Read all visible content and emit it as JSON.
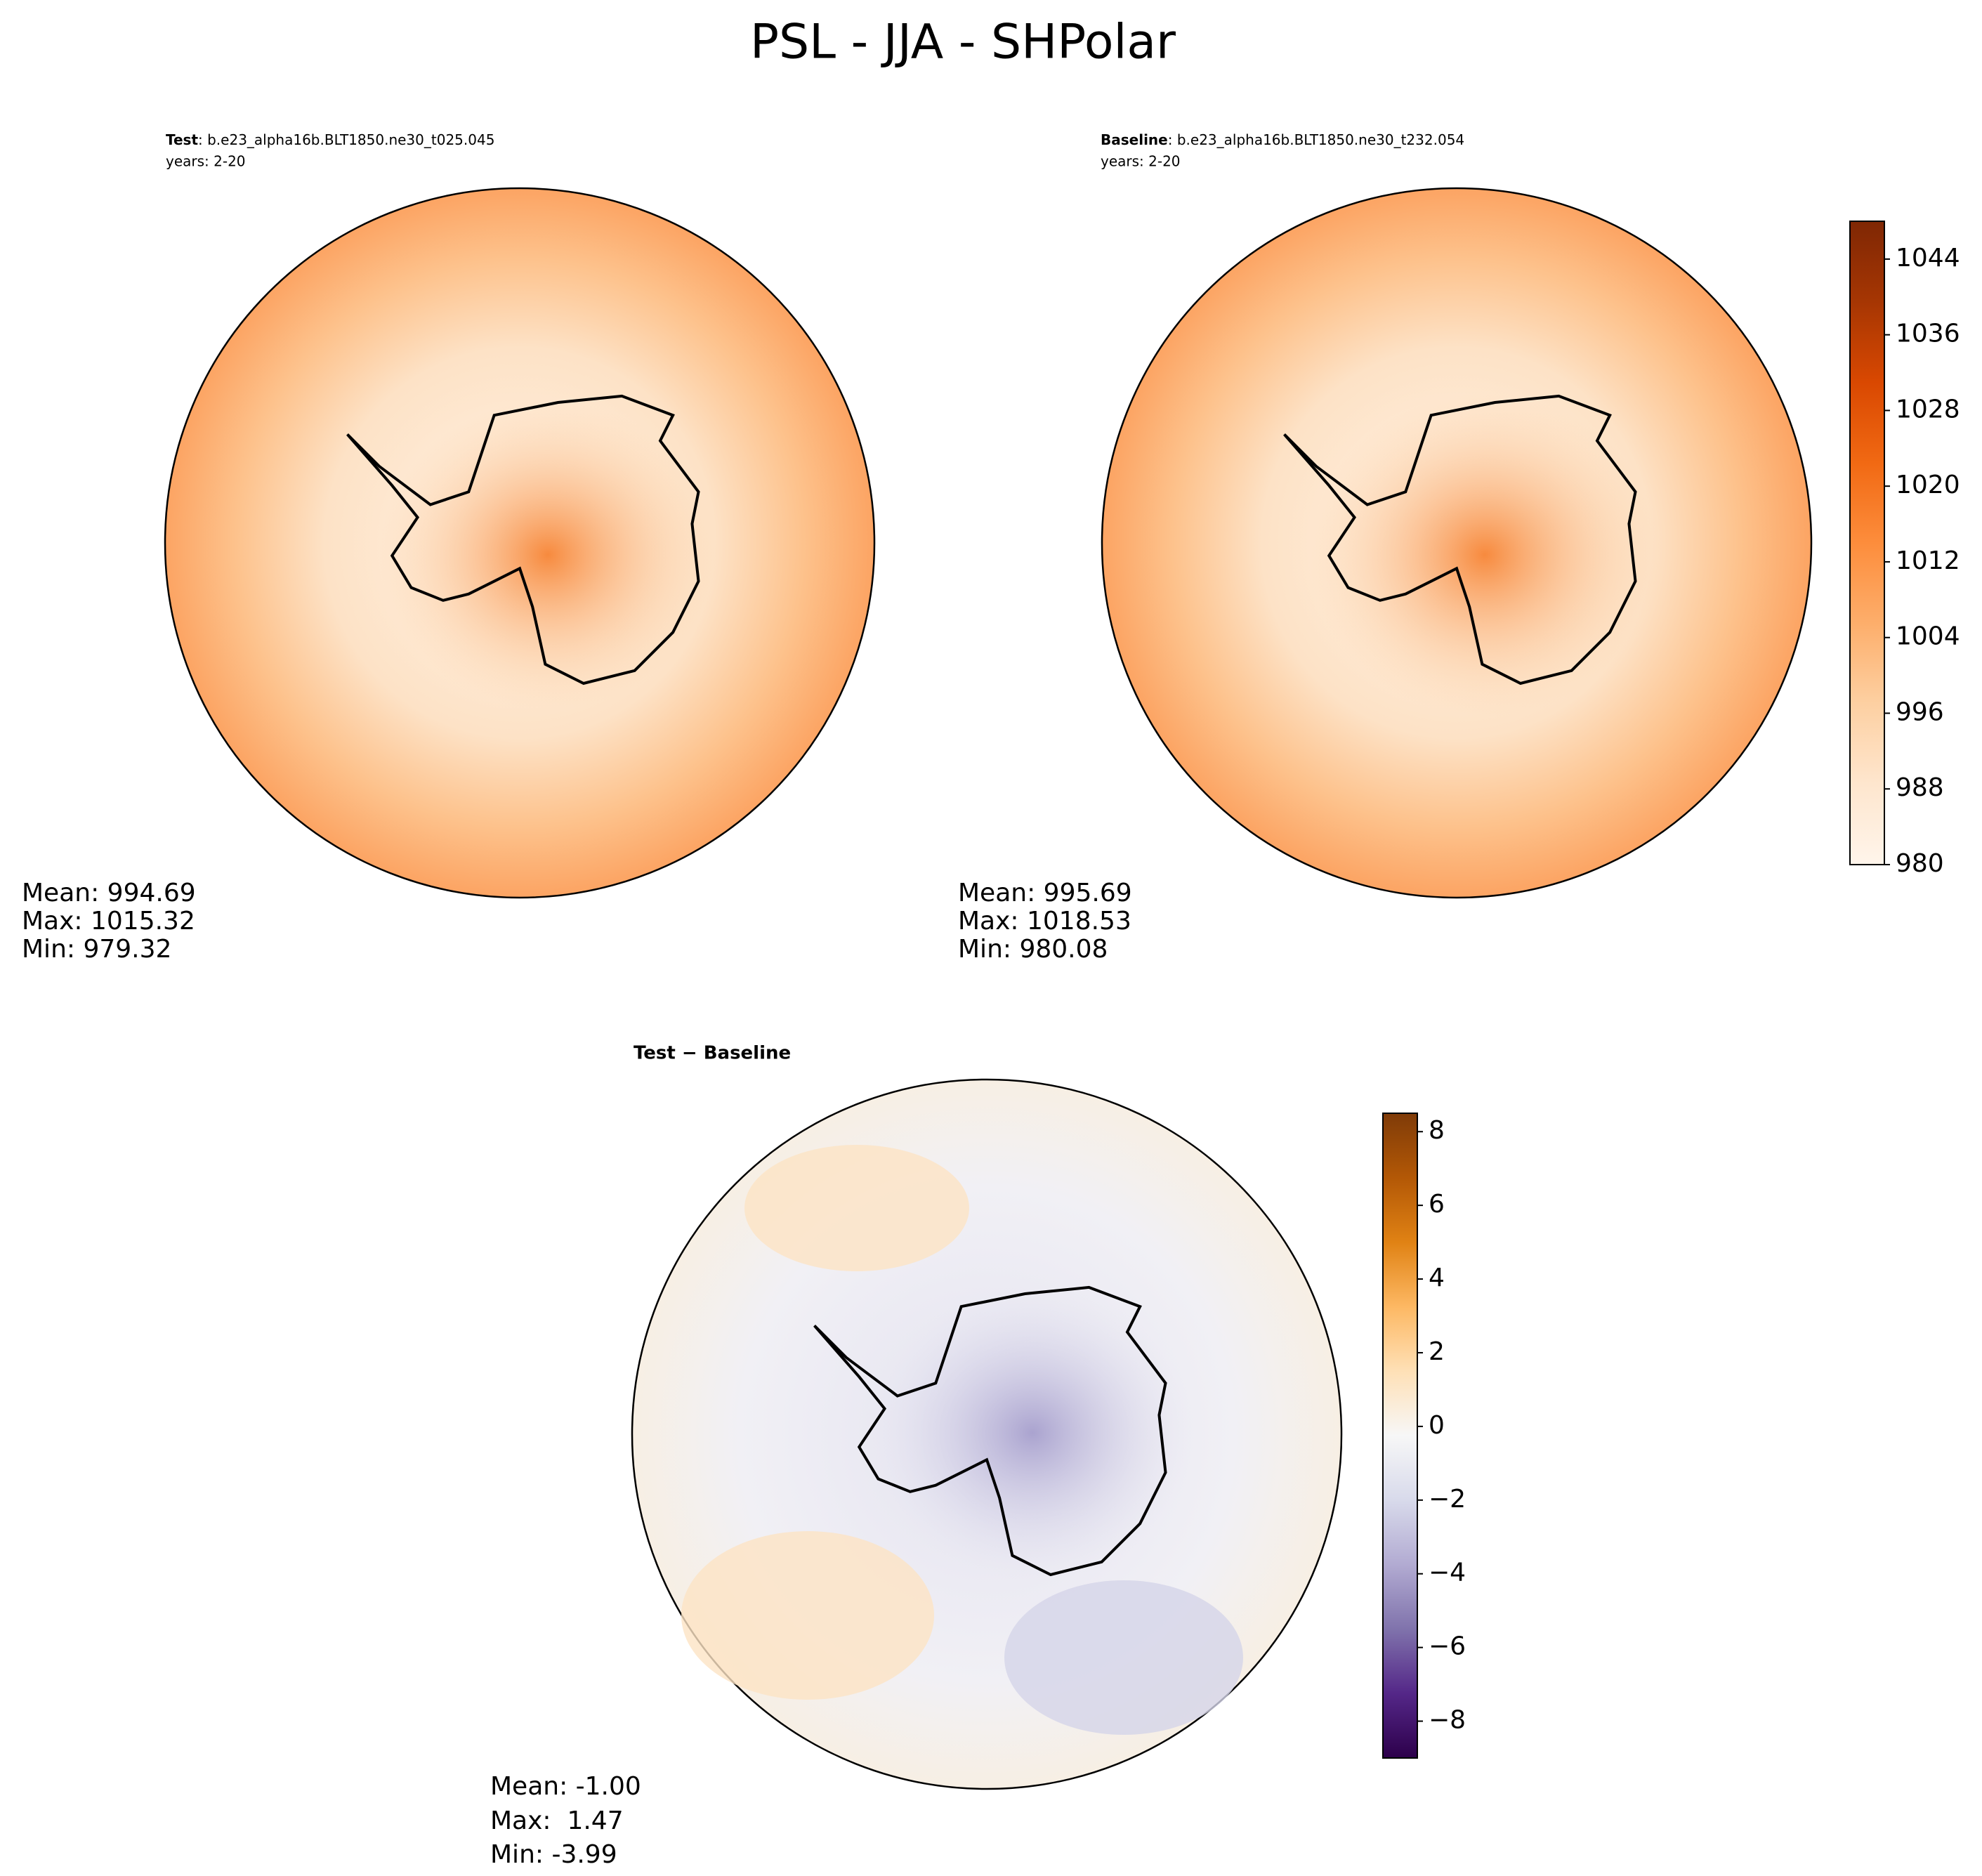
{
  "title": "PSL - JJA - SHPolar",
  "chart_data": [
    {
      "type": "contourf",
      "label_bold": "Test",
      "label": ": b.e23_alpha16b.BLT1850.ne30_t025.045",
      "years": "years: 2-20",
      "stats": [
        "Mean: 994.69",
        "Max: 1015.32",
        "Min: 979.32"
      ]
    },
    {
      "type": "contourf",
      "label_bold": "Baseline",
      "label": ": b.e23_alpha16b.BLT1850.ne30_t232.054",
      "years": "years: 2-20",
      "stats": [
        "Mean: 995.69",
        "Max: 1018.53",
        "Min: 980.08"
      ],
      "colorbar": {
        "ylim": [
          980,
          1048
        ],
        "yticks": [
          980,
          988,
          996,
          1004,
          1012,
          1020,
          1028,
          1036,
          1044
        ],
        "colors": [
          "#fff5eb",
          "#fee6ce",
          "#fdd0a2",
          "#fdae6b",
          "#fd8d3c",
          "#f16913",
          "#d94801",
          "#a63603",
          "#7f2704"
        ]
      }
    },
    {
      "type": "contourf",
      "label_bold": "Test − Baseline",
      "stats": [
        "Mean: -1.00",
        "Max:  1.47",
        "Min: -3.99"
      ],
      "colorbar": {
        "ylim": [
          -9,
          8.5
        ],
        "yticks": [
          {
            "value": -8,
            "label": "−8"
          },
          {
            "value": -6,
            "label": "−6"
          },
          {
            "value": -4,
            "label": "−4"
          },
          {
            "value": -2,
            "label": "−2"
          },
          0,
          2,
          4,
          6,
          8
        ],
        "colors": [
          "#2d004b",
          "#542788",
          "#8073ac",
          "#b2abd2",
          "#d8daeb",
          "#f7f7f7",
          "#fee0b6",
          "#fdb863",
          "#e08214",
          "#b35806",
          "#7f3b08"
        ]
      }
    }
  ]
}
